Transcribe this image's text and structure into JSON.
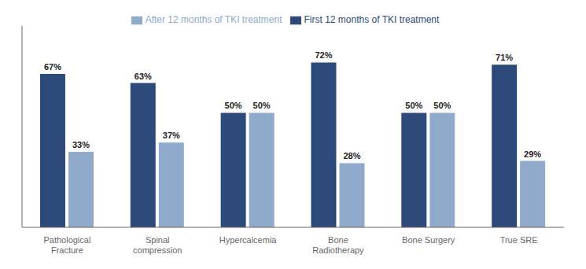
{
  "chart_data": {
    "type": "bar",
    "categories": [
      "Pathological\nFracture",
      "Spinal\ncompression",
      "Hypercalcemia",
      "Bone\nRadiotherapy",
      "Bone Surgery",
      "True SRE"
    ],
    "series": [
      {
        "name": "First 12 months of TKI treatment",
        "color": "#2d4a7a",
        "values": [
          67,
          63,
          50,
          72,
          50,
          71
        ],
        "value_labels": [
          "67%",
          "63%",
          "50%",
          "72%",
          "50%",
          "71%"
        ]
      },
      {
        "name": "After 12 months of TKI treatment",
        "color": "#8faacb",
        "values": [
          33,
          37,
          50,
          28,
          50,
          29
        ],
        "value_labels": [
          "33%",
          "37%",
          "50%",
          "28%",
          "50%",
          "29%"
        ]
      }
    ],
    "ylim": [
      0,
      88
    ],
    "yticks": [],
    "grid": false,
    "legend": "top",
    "data_labels": true,
    "tick_labels": "x"
  }
}
